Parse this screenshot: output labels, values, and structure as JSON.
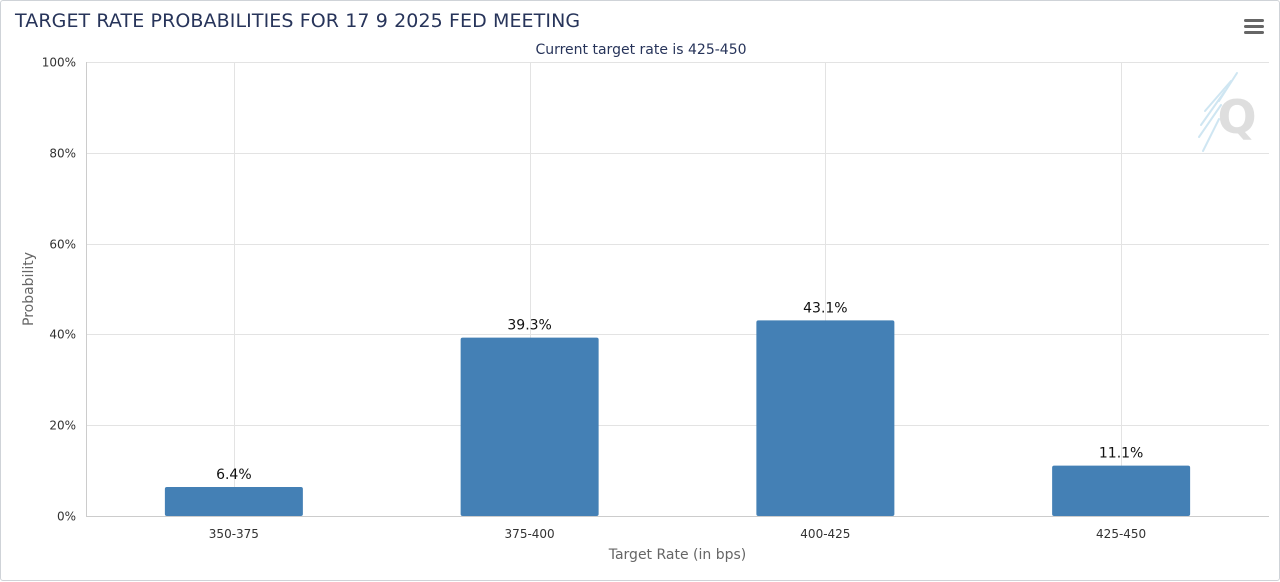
{
  "header": {
    "title": "TARGET RATE PROBABILITIES FOR 17 9 2025 FED MEETING",
    "subtitle": "Current target rate is 425-450"
  },
  "menu": {
    "icon": "hamburger-menu-icon"
  },
  "watermark": {
    "icon": "q-logo-icon",
    "text": "Q"
  },
  "colors": {
    "bar": "#4480b5",
    "title": "#27345a",
    "grid": "#e3e3e3",
    "axis": "#cccccc"
  },
  "chart_data": {
    "type": "bar",
    "categories": [
      "350-375",
      "375-400",
      "400-425",
      "425-450"
    ],
    "values": [
      6.4,
      39.3,
      43.1,
      11.1
    ],
    "data_labels": [
      "6.4%",
      "39.3%",
      "43.1%",
      "11.1%"
    ],
    "title": "TARGET RATE PROBABILITIES FOR 17 9 2025 FED MEETING",
    "subtitle": "Current target rate is 425-450",
    "xlabel": "Target Rate (in bps)",
    "ylabel": "Probability",
    "ylim": [
      0,
      100
    ],
    "yticks": [
      0,
      20,
      40,
      60,
      80,
      100
    ],
    "ytick_labels": [
      "0%",
      "20%",
      "40%",
      "60%",
      "80%",
      "100%"
    ],
    "grid": true,
    "legend": "none"
  }
}
